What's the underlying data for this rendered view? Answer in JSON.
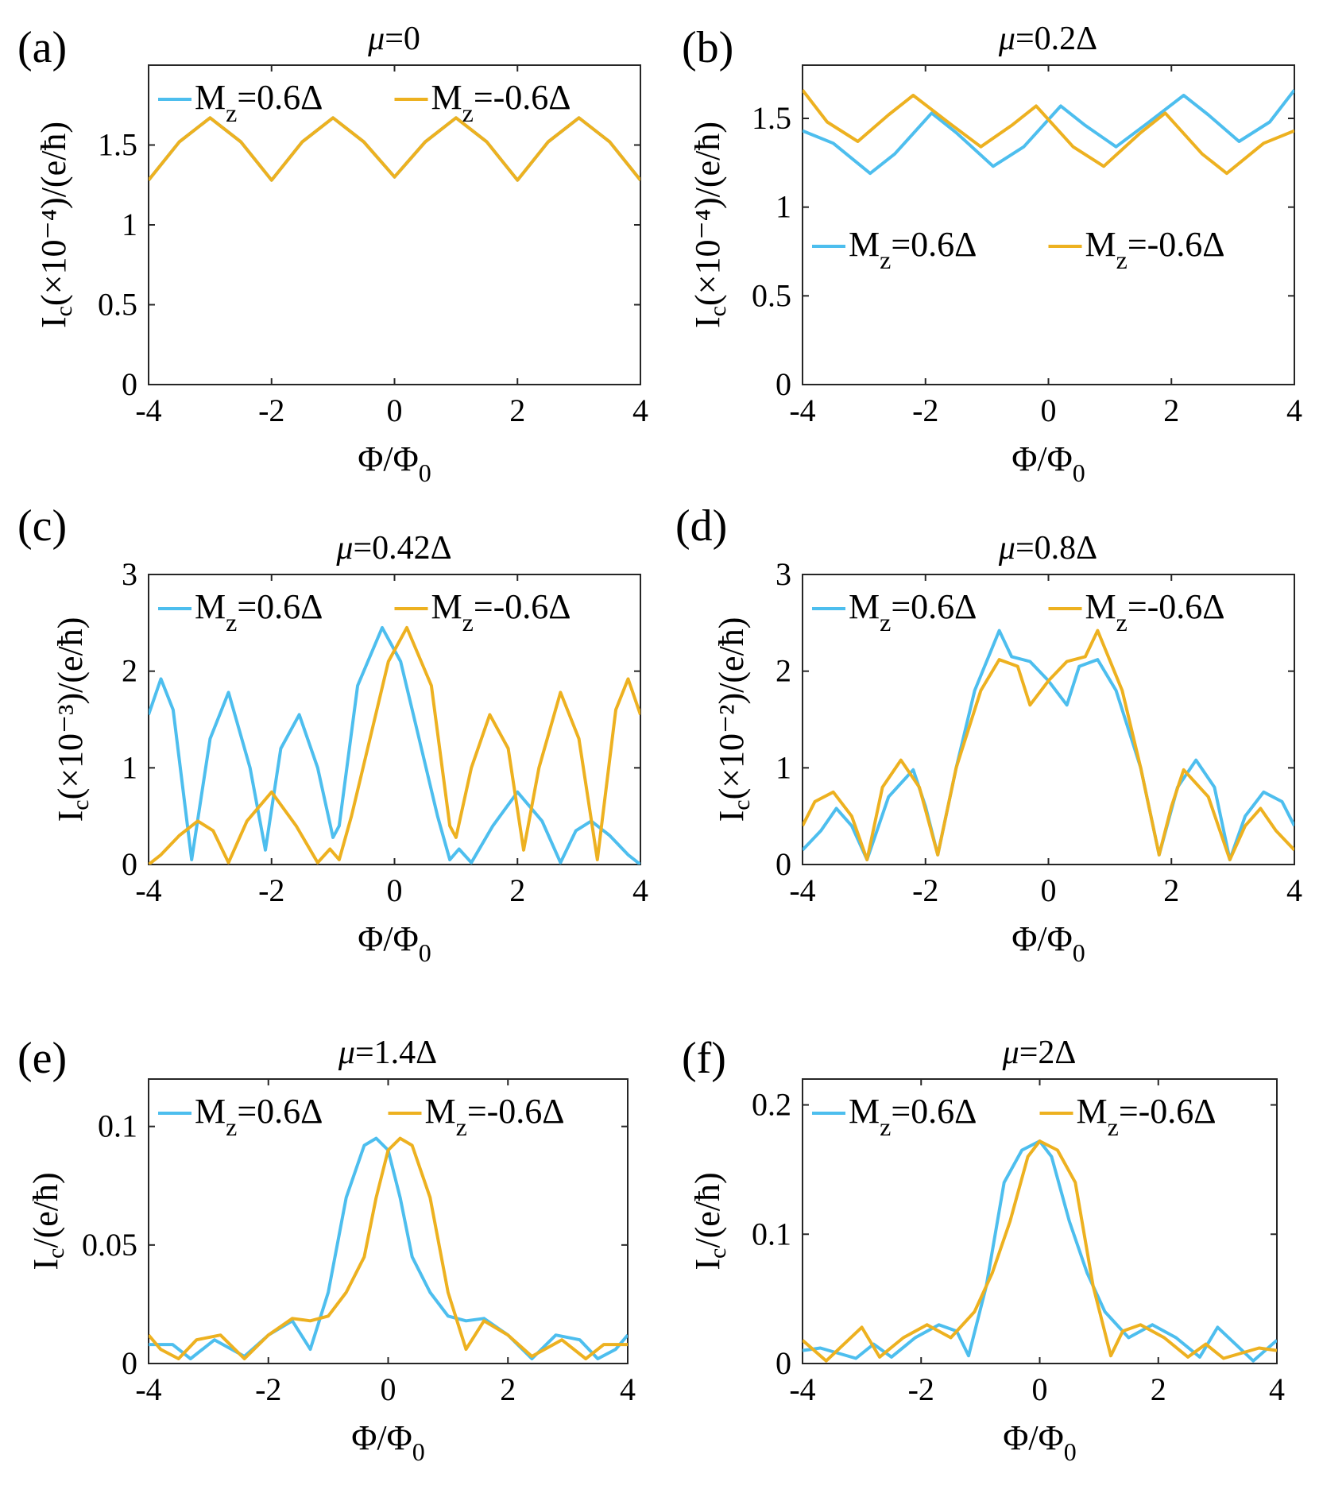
{
  "figure": {
    "x_label_main": "Φ/Φ",
    "x_label_sub": "0",
    "colors": {
      "blue": "#4DBEEE",
      "orange": "#EDB120"
    }
  },
  "chart_data": [
    {
      "panel": "(a)",
      "type": "line",
      "title_var": "μ",
      "title_rest": "=0",
      "ylabel_head": "I",
      "ylabel_sub": "c",
      "ylabel_tail": "(×10⁻⁴)/(e/ħ)",
      "xlim": [
        -4,
        4
      ],
      "ylim": [
        0,
        2
      ],
      "xticks": [
        "-4",
        "-2",
        "0",
        "2",
        "4"
      ],
      "yticks": [
        {
          "v": 0,
          "t": "0"
        },
        {
          "v": 0.5,
          "t": "0.5"
        },
        {
          "v": 1,
          "t": "1"
        },
        {
          "v": 1.5,
          "t": "1.5"
        }
      ],
      "legend_pos": "top",
      "legend_layout": "row",
      "series": [
        {
          "name_M": "M",
          "name_sub": "z",
          "name_val": "=0.6Δ",
          "color": "#4DBEEE",
          "x": [
            -4,
            -3.5,
            -3,
            -2.5,
            -2,
            -1.5,
            -1,
            -0.5,
            0,
            0.5,
            1,
            1.5,
            2,
            2.5,
            3,
            3.5,
            4
          ],
          "values": [
            1.28,
            1.52,
            1.67,
            1.52,
            1.28,
            1.52,
            1.67,
            1.52,
            1.3,
            1.52,
            1.67,
            1.52,
            1.28,
            1.52,
            1.67,
            1.52,
            1.28
          ]
        },
        {
          "name_M": "M",
          "name_sub": "z",
          "name_val": "=-0.6Δ",
          "color": "#EDB120",
          "x": [
            -4,
            -3.5,
            -3,
            -2.5,
            -2,
            -1.5,
            -1,
            -0.5,
            0,
            0.5,
            1,
            1.5,
            2,
            2.5,
            3,
            3.5,
            4
          ],
          "values": [
            1.28,
            1.52,
            1.67,
            1.52,
            1.28,
            1.52,
            1.67,
            1.52,
            1.3,
            1.52,
            1.67,
            1.52,
            1.28,
            1.52,
            1.67,
            1.52,
            1.28
          ]
        }
      ]
    },
    {
      "panel": "(b)",
      "type": "line",
      "title_var": "μ",
      "title_rest": "=0.2Δ",
      "ylabel_head": "I",
      "ylabel_sub": "c",
      "ylabel_tail": "(×10⁻⁴)/(e/ħ)",
      "xlim": [
        -4,
        4
      ],
      "ylim": [
        0,
        1.8
      ],
      "xticks": [
        "-4",
        "-2",
        "0",
        "2",
        "4"
      ],
      "yticks": [
        {
          "v": 0,
          "t": "0"
        },
        {
          "v": 0.5,
          "t": "0.5"
        },
        {
          "v": 1,
          "t": "1"
        },
        {
          "v": 1.5,
          "t": "1.5"
        }
      ],
      "legend_pos": "middle",
      "legend_layout": "row",
      "series": [
        {
          "name_M": "M",
          "name_sub": "z",
          "name_val": "=0.6Δ",
          "color": "#4DBEEE",
          "x": [
            -4,
            -3.5,
            -2.9,
            -2.5,
            -1.9,
            -1.5,
            -0.9,
            -0.4,
            0.2,
            0.6,
            1.1,
            1.6,
            2.2,
            2.6,
            3.1,
            3.6,
            4
          ],
          "values": [
            1.43,
            1.36,
            1.19,
            1.3,
            1.53,
            1.42,
            1.23,
            1.34,
            1.57,
            1.46,
            1.34,
            1.47,
            1.63,
            1.52,
            1.37,
            1.48,
            1.66
          ]
        },
        {
          "name_M": "M",
          "name_sub": "z",
          "name_val": "=-0.6Δ",
          "color": "#EDB120",
          "x": [
            -4,
            -3.6,
            -3.1,
            -2.6,
            -2.2,
            -1.6,
            -1.1,
            -0.6,
            -0.2,
            0.4,
            0.9,
            1.5,
            1.9,
            2.5,
            2.9,
            3.5,
            4
          ],
          "values": [
            1.66,
            1.48,
            1.37,
            1.52,
            1.63,
            1.47,
            1.34,
            1.46,
            1.57,
            1.34,
            1.23,
            1.42,
            1.53,
            1.3,
            1.19,
            1.36,
            1.43
          ]
        }
      ]
    },
    {
      "panel": "(c)",
      "type": "line",
      "title_var": "μ",
      "title_rest": "=0.42Δ",
      "ylabel_head": "I",
      "ylabel_sub": "c",
      "ylabel_tail": "(×10⁻³)/(e/ħ)",
      "xlim": [
        -4,
        4
      ],
      "ylim": [
        0,
        3
      ],
      "xticks": [
        "-4",
        "-2",
        "0",
        "2",
        "4"
      ],
      "yticks": [
        {
          "v": 0,
          "t": "0"
        },
        {
          "v": 1,
          "t": "1"
        },
        {
          "v": 2,
          "t": "2"
        },
        {
          "v": 3,
          "t": "3"
        }
      ],
      "legend_pos": "top",
      "legend_layout": "row",
      "series": [
        {
          "name_M": "M",
          "name_sub": "z",
          "name_val": "=0.6Δ",
          "color": "#4DBEEE",
          "x": [
            -4,
            -3.8,
            -3.6,
            -3.3,
            -3.0,
            -2.7,
            -2.35,
            -2.1,
            -1.85,
            -1.55,
            -1.25,
            -1.0,
            -0.9,
            -0.6,
            -0.2,
            0.1,
            0.4,
            0.7,
            0.9,
            1.05,
            1.25,
            1.6,
            2.0,
            2.4,
            2.7,
            2.95,
            3.2,
            3.5,
            3.8,
            4.0
          ],
          "values": [
            1.55,
            1.92,
            1.6,
            0.05,
            1.3,
            1.78,
            1.0,
            0.15,
            1.2,
            1.55,
            1.0,
            0.28,
            0.4,
            1.85,
            2.45,
            2.1,
            1.3,
            0.5,
            0.05,
            0.16,
            0.02,
            0.4,
            0.75,
            0.45,
            0.02,
            0.35,
            0.45,
            0.3,
            0.1,
            0.0
          ]
        },
        {
          "name_M": "M",
          "name_sub": "z",
          "name_val": "=-0.6Δ",
          "color": "#EDB120",
          "x": [
            -4,
            -3.8,
            -3.5,
            -3.2,
            -2.95,
            -2.7,
            -2.4,
            -2.0,
            -1.6,
            -1.25,
            -1.05,
            -0.9,
            -0.7,
            -0.4,
            -0.1,
            0.2,
            0.6,
            0.9,
            1.0,
            1.25,
            1.55,
            1.85,
            2.1,
            2.35,
            2.7,
            3.0,
            3.3,
            3.6,
            3.8,
            4.0
          ],
          "values": [
            0.0,
            0.1,
            0.3,
            0.45,
            0.35,
            0.02,
            0.45,
            0.75,
            0.4,
            0.02,
            0.16,
            0.05,
            0.5,
            1.3,
            2.1,
            2.45,
            1.85,
            0.4,
            0.28,
            1.0,
            1.55,
            1.2,
            0.15,
            1.0,
            1.78,
            1.3,
            0.05,
            1.6,
            1.92,
            1.55
          ]
        }
      ]
    },
    {
      "panel": "(d)",
      "type": "line",
      "title_var": "μ",
      "title_rest": "=0.8Δ",
      "ylabel_head": "I",
      "ylabel_sub": "c",
      "ylabel_tail": "(×10⁻²)/(e/ħ)",
      "xlim": [
        -4,
        4
      ],
      "ylim": [
        0,
        3
      ],
      "xticks": [
        "-4",
        "-2",
        "0",
        "2",
        "4"
      ],
      "yticks": [
        {
          "v": 0,
          "t": "0"
        },
        {
          "v": 1,
          "t": "1"
        },
        {
          "v": 2,
          "t": "2"
        },
        {
          "v": 3,
          "t": "3"
        }
      ],
      "legend_pos": "top",
      "legend_layout": "row",
      "series": [
        {
          "name_M": "M",
          "name_sub": "z",
          "name_val": "=0.6Δ",
          "color": "#4DBEEE",
          "x": [
            -4,
            -3.7,
            -3.45,
            -3.2,
            -2.95,
            -2.6,
            -2.2,
            -2.0,
            -1.8,
            -1.5,
            -1.2,
            -0.8,
            -0.6,
            -0.3,
            0,
            0.3,
            0.5,
            0.8,
            1.1,
            1.5,
            1.8,
            2.1,
            2.4,
            2.7,
            2.95,
            3.2,
            3.5,
            3.8,
            4.0
          ],
          "values": [
            0.15,
            0.35,
            0.58,
            0.4,
            0.05,
            0.7,
            0.98,
            0.6,
            0.1,
            1.0,
            1.8,
            2.42,
            2.15,
            2.1,
            1.9,
            1.65,
            2.05,
            2.12,
            1.8,
            1.0,
            0.1,
            0.8,
            1.08,
            0.8,
            0.05,
            0.5,
            0.75,
            0.65,
            0.4
          ]
        },
        {
          "name_M": "M",
          "name_sub": "z",
          "name_val": "=-0.6Δ",
          "color": "#EDB120",
          "x": [
            -4,
            -3.8,
            -3.5,
            -3.2,
            -2.95,
            -2.7,
            -2.4,
            -2.1,
            -1.8,
            -1.5,
            -1.1,
            -0.8,
            -0.5,
            -0.3,
            0,
            0.3,
            0.6,
            0.8,
            1.2,
            1.5,
            1.8,
            2.0,
            2.2,
            2.6,
            2.95,
            3.2,
            3.45,
            3.7,
            4.0
          ],
          "values": [
            0.4,
            0.65,
            0.75,
            0.5,
            0.05,
            0.8,
            1.08,
            0.8,
            0.1,
            1.0,
            1.8,
            2.12,
            2.05,
            1.65,
            1.9,
            2.1,
            2.15,
            2.42,
            1.8,
            1.0,
            0.1,
            0.6,
            0.98,
            0.7,
            0.05,
            0.4,
            0.58,
            0.35,
            0.15
          ]
        }
      ]
    },
    {
      "panel": "(e)",
      "type": "line",
      "title_var": "μ",
      "title_rest": "=1.4Δ",
      "ylabel_head": "I",
      "ylabel_sub": "c",
      "ylabel_tail": "/(e/ħ)",
      "xlim": [
        -4,
        4
      ],
      "ylim": [
        0,
        0.12
      ],
      "xticks": [
        "-4",
        "-2",
        "0",
        "2",
        "4"
      ],
      "yticks": [
        {
          "v": 0,
          "t": "0"
        },
        {
          "v": 0.05,
          "t": "0.05"
        },
        {
          "v": 0.1,
          "t": "0.1"
        }
      ],
      "legend_pos": "top",
      "legend_layout": "row",
      "series": [
        {
          "name_M": "M",
          "name_sub": "z",
          "name_val": "=0.6Δ",
          "color": "#4DBEEE",
          "x": [
            -4,
            -3.6,
            -3.3,
            -2.9,
            -2.4,
            -2.0,
            -1.6,
            -1.3,
            -1.0,
            -0.7,
            -0.4,
            -0.2,
            0,
            0.2,
            0.4,
            0.7,
            1.0,
            1.3,
            1.6,
            2.0,
            2.4,
            2.8,
            3.2,
            3.5,
            3.8,
            4.0
          ],
          "values": [
            0.008,
            0.008,
            0.002,
            0.01,
            0.003,
            0.012,
            0.018,
            0.006,
            0.03,
            0.07,
            0.092,
            0.095,
            0.09,
            0.07,
            0.045,
            0.03,
            0.02,
            0.018,
            0.019,
            0.012,
            0.002,
            0.012,
            0.01,
            0.002,
            0.006,
            0.012
          ]
        },
        {
          "name_M": "M",
          "name_sub": "z",
          "name_val": "=-0.6Δ",
          "color": "#EDB120",
          "x": [
            -4,
            -3.8,
            -3.5,
            -3.2,
            -2.8,
            -2.4,
            -2.0,
            -1.6,
            -1.3,
            -1.0,
            -0.7,
            -0.4,
            -0.2,
            0,
            0.2,
            0.4,
            0.7,
            1.0,
            1.3,
            1.6,
            2.0,
            2.4,
            2.9,
            3.3,
            3.6,
            4.0
          ],
          "values": [
            0.012,
            0.006,
            0.002,
            0.01,
            0.012,
            0.002,
            0.012,
            0.019,
            0.018,
            0.02,
            0.03,
            0.045,
            0.07,
            0.09,
            0.095,
            0.092,
            0.07,
            0.03,
            0.006,
            0.018,
            0.012,
            0.003,
            0.01,
            0.002,
            0.008,
            0.008
          ]
        }
      ]
    },
    {
      "panel": "(f)",
      "type": "line",
      "title_var": "μ",
      "title_rest": "=2Δ",
      "ylabel_head": "I",
      "ylabel_sub": "c",
      "ylabel_tail": "/(e/ħ)",
      "xlim": [
        -4,
        4
      ],
      "ylim": [
        0,
        0.22
      ],
      "xticks": [
        "-4",
        "-2",
        "0",
        "2",
        "4"
      ],
      "yticks": [
        {
          "v": 0,
          "t": "0"
        },
        {
          "v": 0.1,
          "t": "0.1"
        },
        {
          "v": 0.2,
          "t": "0.2"
        }
      ],
      "legend_pos": "top",
      "legend_layout": "row",
      "series": [
        {
          "name_M": "M",
          "name_sub": "z",
          "name_val": "=0.6Δ",
          "color": "#4DBEEE",
          "x": [
            -4,
            -3.7,
            -3.4,
            -3.1,
            -2.8,
            -2.5,
            -2.1,
            -1.7,
            -1.4,
            -1.2,
            -0.9,
            -0.6,
            -0.3,
            0,
            0.2,
            0.5,
            0.8,
            1.1,
            1.5,
            1.9,
            2.3,
            2.7,
            3.0,
            3.3,
            3.6,
            4.0
          ],
          "values": [
            0.01,
            0.012,
            0.008,
            0.004,
            0.015,
            0.005,
            0.02,
            0.03,
            0.025,
            0.006,
            0.06,
            0.14,
            0.165,
            0.172,
            0.16,
            0.11,
            0.07,
            0.04,
            0.02,
            0.03,
            0.02,
            0.005,
            0.028,
            0.015,
            0.002,
            0.018
          ]
        },
        {
          "name_M": "M",
          "name_sub": "z",
          "name_val": "=-0.6Δ",
          "color": "#EDB120",
          "x": [
            -4,
            -3.6,
            -3.3,
            -3.0,
            -2.7,
            -2.3,
            -1.9,
            -1.5,
            -1.1,
            -0.8,
            -0.5,
            -0.2,
            0,
            0.3,
            0.6,
            0.9,
            1.2,
            1.4,
            1.7,
            2.1,
            2.5,
            2.8,
            3.1,
            3.4,
            3.7,
            4.0
          ],
          "values": [
            0.018,
            0.002,
            0.015,
            0.028,
            0.005,
            0.02,
            0.03,
            0.02,
            0.04,
            0.07,
            0.11,
            0.16,
            0.172,
            0.165,
            0.14,
            0.06,
            0.006,
            0.025,
            0.03,
            0.02,
            0.005,
            0.015,
            0.004,
            0.008,
            0.012,
            0.01
          ]
        }
      ]
    }
  ]
}
